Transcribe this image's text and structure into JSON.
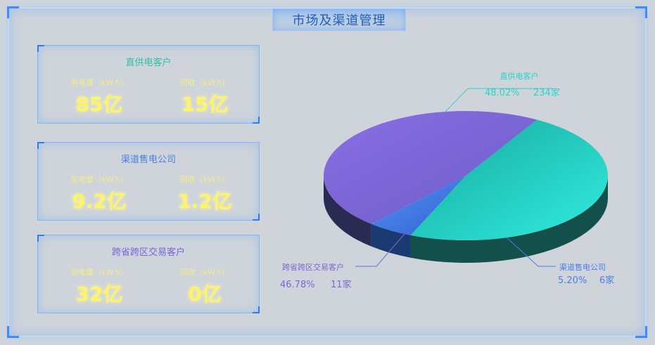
{
  "header": {
    "title": "市场及渠道管理"
  },
  "cards": [
    {
      "title": "直供电客户",
      "title_color": "#2dbfa8",
      "metrics": [
        {
          "label": "用电量（kW.h）",
          "value": "85亿"
        },
        {
          "label": "回收（kW.h）",
          "value": "15亿"
        }
      ]
    },
    {
      "title": "渠道售电公司",
      "title_color": "#4b7fe0",
      "metrics": [
        {
          "label": "用电量（kW.h）",
          "value": "9.2亿"
        },
        {
          "label": "回收（kW.h）",
          "value": "1.2亿"
        }
      ]
    },
    {
      "title": "跨省跨区交易客户",
      "title_color": "#7667d8",
      "metrics": [
        {
          "label": "用电量（kW.h）",
          "value": "32亿"
        },
        {
          "label": "回收（kW.h）",
          "value": "0亿"
        }
      ]
    }
  ],
  "chart_data": {
    "type": "pie",
    "series": [
      {
        "name": "直供电客户",
        "percent": 48.02,
        "count": "234家",
        "pct_label": "48.02%",
        "color": "#2ad3c6"
      },
      {
        "name": "渠道售电公司",
        "percent": 5.2,
        "count": "6家",
        "pct_label": "5.20%",
        "color": "#4a7fe6"
      },
      {
        "name": "跨省跨区交易客户",
        "percent": 46.78,
        "count": "11家",
        "pct_label": "46.78%",
        "color": "#7b66d8"
      }
    ]
  }
}
